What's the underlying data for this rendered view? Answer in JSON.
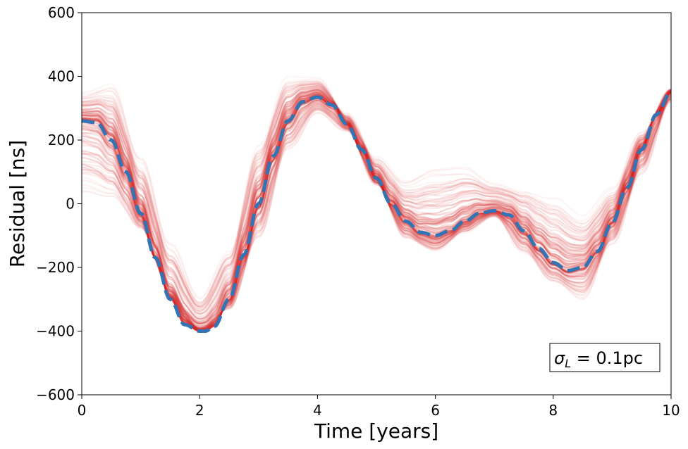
{
  "chart_data": {
    "type": "line",
    "title": "",
    "xlabel": "Time [years]",
    "ylabel": "Residual [ns]",
    "xlim": [
      0,
      10
    ],
    "ylim": [
      -600,
      600
    ],
    "x_ticks": [
      0,
      2,
      4,
      6,
      8,
      10
    ],
    "x_tick_labels": [
      "0",
      "2",
      "4",
      "6",
      "8",
      "10"
    ],
    "y_ticks": [
      -600,
      -400,
      -200,
      0,
      200,
      400,
      600
    ],
    "y_tick_labels": [
      "−600",
      "−400",
      "−200",
      "0",
      "200",
      "400",
      "600"
    ],
    "grid": false,
    "legend": "none",
    "annotation": {
      "text_symbol": "σ",
      "text_subscript": "L",
      "text_rest": " = 0.1pc",
      "position": "bottom-right"
    },
    "series": [
      {
        "style": "dashed",
        "color": "#3274b4",
        "x": [
          0,
          0.25,
          0.5,
          0.75,
          1.0,
          1.25,
          1.5,
          1.75,
          2.0,
          2.1,
          2.25,
          2.5,
          2.75,
          3.0,
          3.25,
          3.5,
          3.75,
          4.0,
          4.25,
          4.5,
          4.75,
          5.0,
          5.25,
          5.5,
          5.75,
          6.0,
          6.25,
          6.5,
          6.75,
          7.0,
          7.25,
          7.5,
          7.75,
          8.0,
          8.25,
          8.5,
          8.75,
          9.0,
          9.25,
          9.5,
          9.75,
          10.0
        ],
        "values": [
          260,
          255,
          200,
          100,
          -30,
          -170,
          -300,
          -380,
          -400,
          -400,
          -385,
          -300,
          -160,
          0,
          150,
          260,
          320,
          335,
          310,
          250,
          170,
          80,
          0,
          -55,
          -90,
          -100,
          -85,
          -55,
          -30,
          -22,
          -35,
          -85,
          -140,
          -185,
          -210,
          -200,
          -150,
          -60,
          50,
          170,
          280,
          350
        ]
      },
      {
        "style": "ensemble-band",
        "color": "#d62728",
        "count": 120,
        "x": [
          0,
          0.5,
          1.0,
          1.5,
          2.0,
          2.5,
          3.0,
          3.5,
          4.0,
          4.5,
          5.0,
          5.5,
          6.0,
          6.5,
          7.0,
          7.5,
          8.0,
          8.5,
          9.0,
          9.5,
          10.0
        ],
        "lower": [
          50,
          20,
          -80,
          -270,
          -390,
          -330,
          -100,
          180,
          290,
          230,
          60,
          -110,
          -150,
          -90,
          -40,
          -150,
          -240,
          -290,
          -120,
          100,
          320
        ],
        "upper": [
          340,
          360,
          130,
          -140,
          -300,
          -150,
          180,
          390,
          390,
          280,
          140,
          60,
          90,
          100,
          60,
          40,
          10,
          -50,
          40,
          220,
          360
        ]
      }
    ]
  }
}
